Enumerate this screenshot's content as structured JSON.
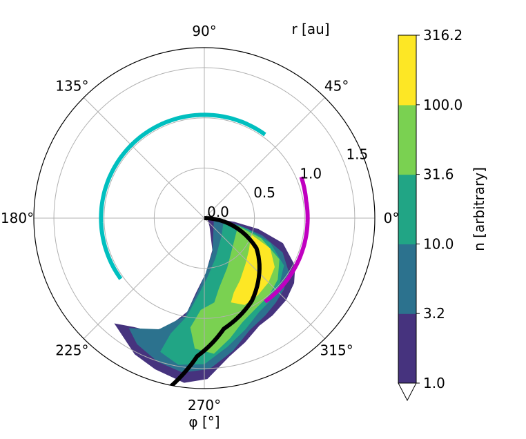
{
  "chart_data": {
    "type": "polar-contourf",
    "axes": {
      "angular": {
        "label": "φ  [°]",
        "ticks": [
          {
            "deg": 0,
            "label": "0°"
          },
          {
            "deg": 45,
            "label": "45°"
          },
          {
            "deg": 90,
            "label": "90°"
          },
          {
            "deg": 135,
            "label": "135°"
          },
          {
            "deg": 180,
            "label": "180°"
          },
          {
            "deg": 225,
            "label": "225°"
          },
          {
            "deg": 270,
            "label": "270°"
          },
          {
            "deg": 315,
            "label": "315°"
          }
        ]
      },
      "radial": {
        "label": "r [au]",
        "rmax": 1.7,
        "ticks": [
          {
            "r": 0.0,
            "label": "0.0"
          },
          {
            "r": 0.5,
            "label": "0.5"
          },
          {
            "r": 1.0,
            "label": "1.0"
          },
          {
            "r": 1.5,
            "label": "1.5"
          }
        ],
        "tick_label_angle_deg": 22.5
      },
      "grid": true
    },
    "colorbar": {
      "label": "n [arbitrary]",
      "scale": "log",
      "levels": [
        1.0,
        3.2,
        10.0,
        31.6,
        100.0,
        316.2
      ],
      "tick_labels": [
        "1.0",
        "3.2",
        "10.0",
        "31.6",
        "100.0",
        "316.2"
      ],
      "colors": [
        "#46337e",
        "#2c728e",
        "#21a585",
        "#7ad151",
        "#fde725"
      ],
      "extend": "min"
    },
    "lines": [
      {
        "name": "black",
        "color": "#000000",
        "points": [
          [
            0.0,
            0.0
          ],
          [
            0.6,
            -30
          ],
          [
            0.95,
            -60
          ],
          [
            1.12,
            -80
          ],
          [
            1.38,
            -93
          ],
          [
            1.74,
            -102
          ]
        ]
      },
      {
        "name": "magenta",
        "color": "#c000c0",
        "points": [
          [
            1.05,
            23
          ],
          [
            1.03,
            10
          ],
          [
            1.03,
            0
          ],
          [
            1.03,
            -15
          ],
          [
            1.03,
            -30
          ],
          [
            1.03,
            -45
          ],
          [
            1.03,
            -54
          ]
        ]
      },
      {
        "name": "cyan",
        "color": "#00bfbf",
        "points": [
          [
            1.03,
            -144
          ],
          [
            1.03,
            -160
          ],
          [
            1.03,
            -175
          ],
          [
            1.03,
            -190
          ],
          [
            1.03,
            -205
          ],
          [
            1.03,
            -220
          ],
          [
            1.03,
            -235
          ],
          [
            1.03,
            -250
          ],
          [
            1.03,
            -265
          ],
          [
            1.03,
            -270
          ],
          [
            1.03,
            -285
          ],
          [
            1.03,
            -300
          ],
          [
            1.03,
            -306
          ]
        ]
      }
    ],
    "density_contours": [
      {
        "level": 1.0,
        "points": [
          [
            0.05,
            0
          ],
          [
            0.3,
            -8
          ],
          [
            0.55,
            -12
          ],
          [
            0.82,
            -18
          ],
          [
            1.02,
            -28
          ],
          [
            1.1,
            -36
          ],
          [
            1.15,
            -45
          ],
          [
            1.18,
            -55
          ],
          [
            1.2,
            -63
          ],
          [
            1.3,
            -72
          ],
          [
            1.4,
            -80
          ],
          [
            1.6,
            -89
          ],
          [
            1.65,
            -97
          ],
          [
            1.58,
            -108
          ],
          [
            1.52,
            -117
          ],
          [
            1.38,
            -130
          ],
          [
            1.3,
            -123
          ],
          [
            1.25,
            -115
          ],
          [
            1.14,
            -108
          ],
          [
            0.95,
            -100
          ],
          [
            0.75,
            -96
          ],
          [
            0.55,
            -88
          ],
          [
            0.33,
            -75
          ],
          [
            0.1,
            -55
          ],
          [
            0.04,
            -20
          ]
        ]
      },
      {
        "level": 3.2,
        "points": [
          [
            0.1,
            -5
          ],
          [
            0.35,
            -12
          ],
          [
            0.6,
            -17
          ],
          [
            0.85,
            -24
          ],
          [
            1.0,
            -33
          ],
          [
            1.06,
            -42
          ],
          [
            1.1,
            -50
          ],
          [
            1.14,
            -58
          ],
          [
            1.2,
            -68
          ],
          [
            1.35,
            -78
          ],
          [
            1.5,
            -88
          ],
          [
            1.55,
            -98
          ],
          [
            1.5,
            -108
          ],
          [
            1.42,
            -118
          ],
          [
            1.33,
            -124
          ],
          [
            1.2,
            -112
          ],
          [
            1.0,
            -101
          ],
          [
            0.78,
            -96
          ],
          [
            0.55,
            -88
          ],
          [
            0.35,
            -76
          ],
          [
            0.15,
            -50
          ]
        ]
      },
      {
        "level": 10.0,
        "points": [
          [
            0.2,
            -8
          ],
          [
            0.45,
            -15
          ],
          [
            0.7,
            -21
          ],
          [
            0.92,
            -31
          ],
          [
            1.0,
            -42
          ],
          [
            1.05,
            -52
          ],
          [
            1.08,
            -60
          ],
          [
            1.18,
            -70
          ],
          [
            1.3,
            -80
          ],
          [
            1.45,
            -90
          ],
          [
            1.48,
            -100
          ],
          [
            1.4,
            -108
          ],
          [
            1.2,
            -106
          ],
          [
            1.0,
            -100
          ],
          [
            0.8,
            -95
          ],
          [
            0.6,
            -87
          ],
          [
            0.42,
            -74
          ],
          [
            0.25,
            -45
          ]
        ]
      },
      {
        "level": 31.6,
        "points": [
          [
            0.35,
            -14
          ],
          [
            0.6,
            -20
          ],
          [
            0.85,
            -29
          ],
          [
            0.95,
            -40
          ],
          [
            1.0,
            -50
          ],
          [
            1.03,
            -60
          ],
          [
            1.1,
            -70
          ],
          [
            1.22,
            -78
          ],
          [
            1.35,
            -86
          ],
          [
            1.3,
            -94
          ],
          [
            1.1,
            -97
          ],
          [
            0.92,
            -92
          ],
          [
            0.85,
            -83
          ],
          [
            0.72,
            -78
          ],
          [
            0.55,
            -65
          ],
          [
            0.42,
            -48
          ]
        ]
      },
      {
        "level": 100.0,
        "points": [
          [
            0.5,
            -20
          ],
          [
            0.72,
            -25
          ],
          [
            0.85,
            -35
          ],
          [
            0.9,
            -45
          ],
          [
            0.93,
            -55
          ],
          [
            0.95,
            -65
          ],
          [
            0.88,
            -72
          ],
          [
            0.8,
            -68
          ],
          [
            0.72,
            -60
          ],
          [
            0.62,
            -48
          ],
          [
            0.55,
            -35
          ]
        ]
      }
    ]
  }
}
